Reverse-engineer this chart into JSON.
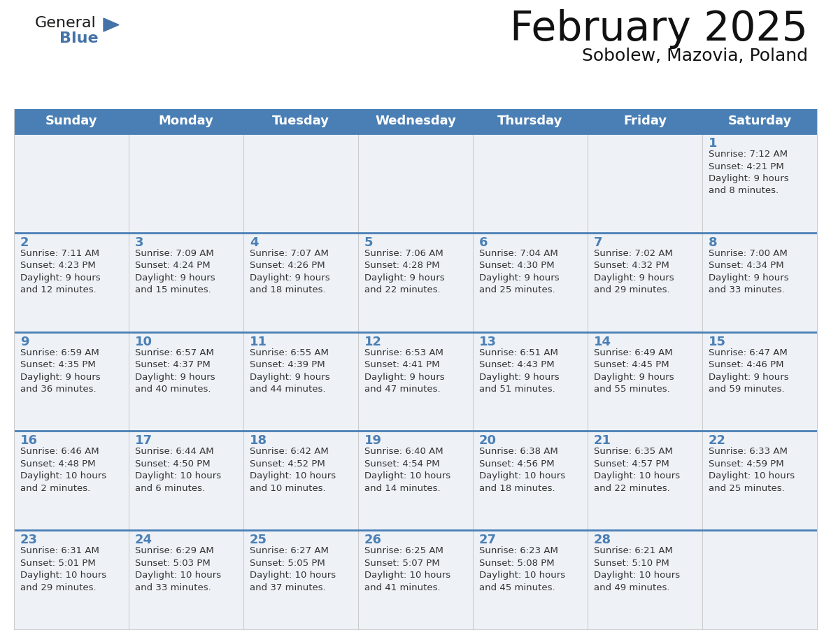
{
  "title": "February 2025",
  "subtitle": "Sobolew, Mazovia, Poland",
  "days_of_week": [
    "Sunday",
    "Monday",
    "Tuesday",
    "Wednesday",
    "Thursday",
    "Friday",
    "Saturday"
  ],
  "header_bg": "#4a7fb5",
  "header_text": "#ffffff",
  "row_bg_light": "#eef2f7",
  "row_bg_white": "#ffffff",
  "divider_color": "#4a7fb5",
  "day_num_color": "#4a7fb5",
  "text_color": "#333333",
  "border_color": "#cccccc",
  "calendar": [
    [
      {
        "day": null,
        "info": ""
      },
      {
        "day": null,
        "info": ""
      },
      {
        "day": null,
        "info": ""
      },
      {
        "day": null,
        "info": ""
      },
      {
        "day": null,
        "info": ""
      },
      {
        "day": null,
        "info": ""
      },
      {
        "day": 1,
        "info": "Sunrise: 7:12 AM\nSunset: 4:21 PM\nDaylight: 9 hours\nand 8 minutes."
      }
    ],
    [
      {
        "day": 2,
        "info": "Sunrise: 7:11 AM\nSunset: 4:23 PM\nDaylight: 9 hours\nand 12 minutes."
      },
      {
        "day": 3,
        "info": "Sunrise: 7:09 AM\nSunset: 4:24 PM\nDaylight: 9 hours\nand 15 minutes."
      },
      {
        "day": 4,
        "info": "Sunrise: 7:07 AM\nSunset: 4:26 PM\nDaylight: 9 hours\nand 18 minutes."
      },
      {
        "day": 5,
        "info": "Sunrise: 7:06 AM\nSunset: 4:28 PM\nDaylight: 9 hours\nand 22 minutes."
      },
      {
        "day": 6,
        "info": "Sunrise: 7:04 AM\nSunset: 4:30 PM\nDaylight: 9 hours\nand 25 minutes."
      },
      {
        "day": 7,
        "info": "Sunrise: 7:02 AM\nSunset: 4:32 PM\nDaylight: 9 hours\nand 29 minutes."
      },
      {
        "day": 8,
        "info": "Sunrise: 7:00 AM\nSunset: 4:34 PM\nDaylight: 9 hours\nand 33 minutes."
      }
    ],
    [
      {
        "day": 9,
        "info": "Sunrise: 6:59 AM\nSunset: 4:35 PM\nDaylight: 9 hours\nand 36 minutes."
      },
      {
        "day": 10,
        "info": "Sunrise: 6:57 AM\nSunset: 4:37 PM\nDaylight: 9 hours\nand 40 minutes."
      },
      {
        "day": 11,
        "info": "Sunrise: 6:55 AM\nSunset: 4:39 PM\nDaylight: 9 hours\nand 44 minutes."
      },
      {
        "day": 12,
        "info": "Sunrise: 6:53 AM\nSunset: 4:41 PM\nDaylight: 9 hours\nand 47 minutes."
      },
      {
        "day": 13,
        "info": "Sunrise: 6:51 AM\nSunset: 4:43 PM\nDaylight: 9 hours\nand 51 minutes."
      },
      {
        "day": 14,
        "info": "Sunrise: 6:49 AM\nSunset: 4:45 PM\nDaylight: 9 hours\nand 55 minutes."
      },
      {
        "day": 15,
        "info": "Sunrise: 6:47 AM\nSunset: 4:46 PM\nDaylight: 9 hours\nand 59 minutes."
      }
    ],
    [
      {
        "day": 16,
        "info": "Sunrise: 6:46 AM\nSunset: 4:48 PM\nDaylight: 10 hours\nand 2 minutes."
      },
      {
        "day": 17,
        "info": "Sunrise: 6:44 AM\nSunset: 4:50 PM\nDaylight: 10 hours\nand 6 minutes."
      },
      {
        "day": 18,
        "info": "Sunrise: 6:42 AM\nSunset: 4:52 PM\nDaylight: 10 hours\nand 10 minutes."
      },
      {
        "day": 19,
        "info": "Sunrise: 6:40 AM\nSunset: 4:54 PM\nDaylight: 10 hours\nand 14 minutes."
      },
      {
        "day": 20,
        "info": "Sunrise: 6:38 AM\nSunset: 4:56 PM\nDaylight: 10 hours\nand 18 minutes."
      },
      {
        "day": 21,
        "info": "Sunrise: 6:35 AM\nSunset: 4:57 PM\nDaylight: 10 hours\nand 22 minutes."
      },
      {
        "day": 22,
        "info": "Sunrise: 6:33 AM\nSunset: 4:59 PM\nDaylight: 10 hours\nand 25 minutes."
      }
    ],
    [
      {
        "day": 23,
        "info": "Sunrise: 6:31 AM\nSunset: 5:01 PM\nDaylight: 10 hours\nand 29 minutes."
      },
      {
        "day": 24,
        "info": "Sunrise: 6:29 AM\nSunset: 5:03 PM\nDaylight: 10 hours\nand 33 minutes."
      },
      {
        "day": 25,
        "info": "Sunrise: 6:27 AM\nSunset: 5:05 PM\nDaylight: 10 hours\nand 37 minutes."
      },
      {
        "day": 26,
        "info": "Sunrise: 6:25 AM\nSunset: 5:07 PM\nDaylight: 10 hours\nand 41 minutes."
      },
      {
        "day": 27,
        "info": "Sunrise: 6:23 AM\nSunset: 5:08 PM\nDaylight: 10 hours\nand 45 minutes."
      },
      {
        "day": 28,
        "info": "Sunrise: 6:21 AM\nSunset: 5:10 PM\nDaylight: 10 hours\nand 49 minutes."
      },
      {
        "day": null,
        "info": ""
      }
    ]
  ],
  "logo_text_general": "General",
  "logo_text_blue": "Blue",
  "logo_triangle_color": "#4472a8",
  "logo_general_color": "#1a1a1a",
  "title_fontsize": 42,
  "subtitle_fontsize": 18,
  "header_fontsize": 13,
  "day_num_fontsize": 13,
  "info_fontsize": 9.5
}
